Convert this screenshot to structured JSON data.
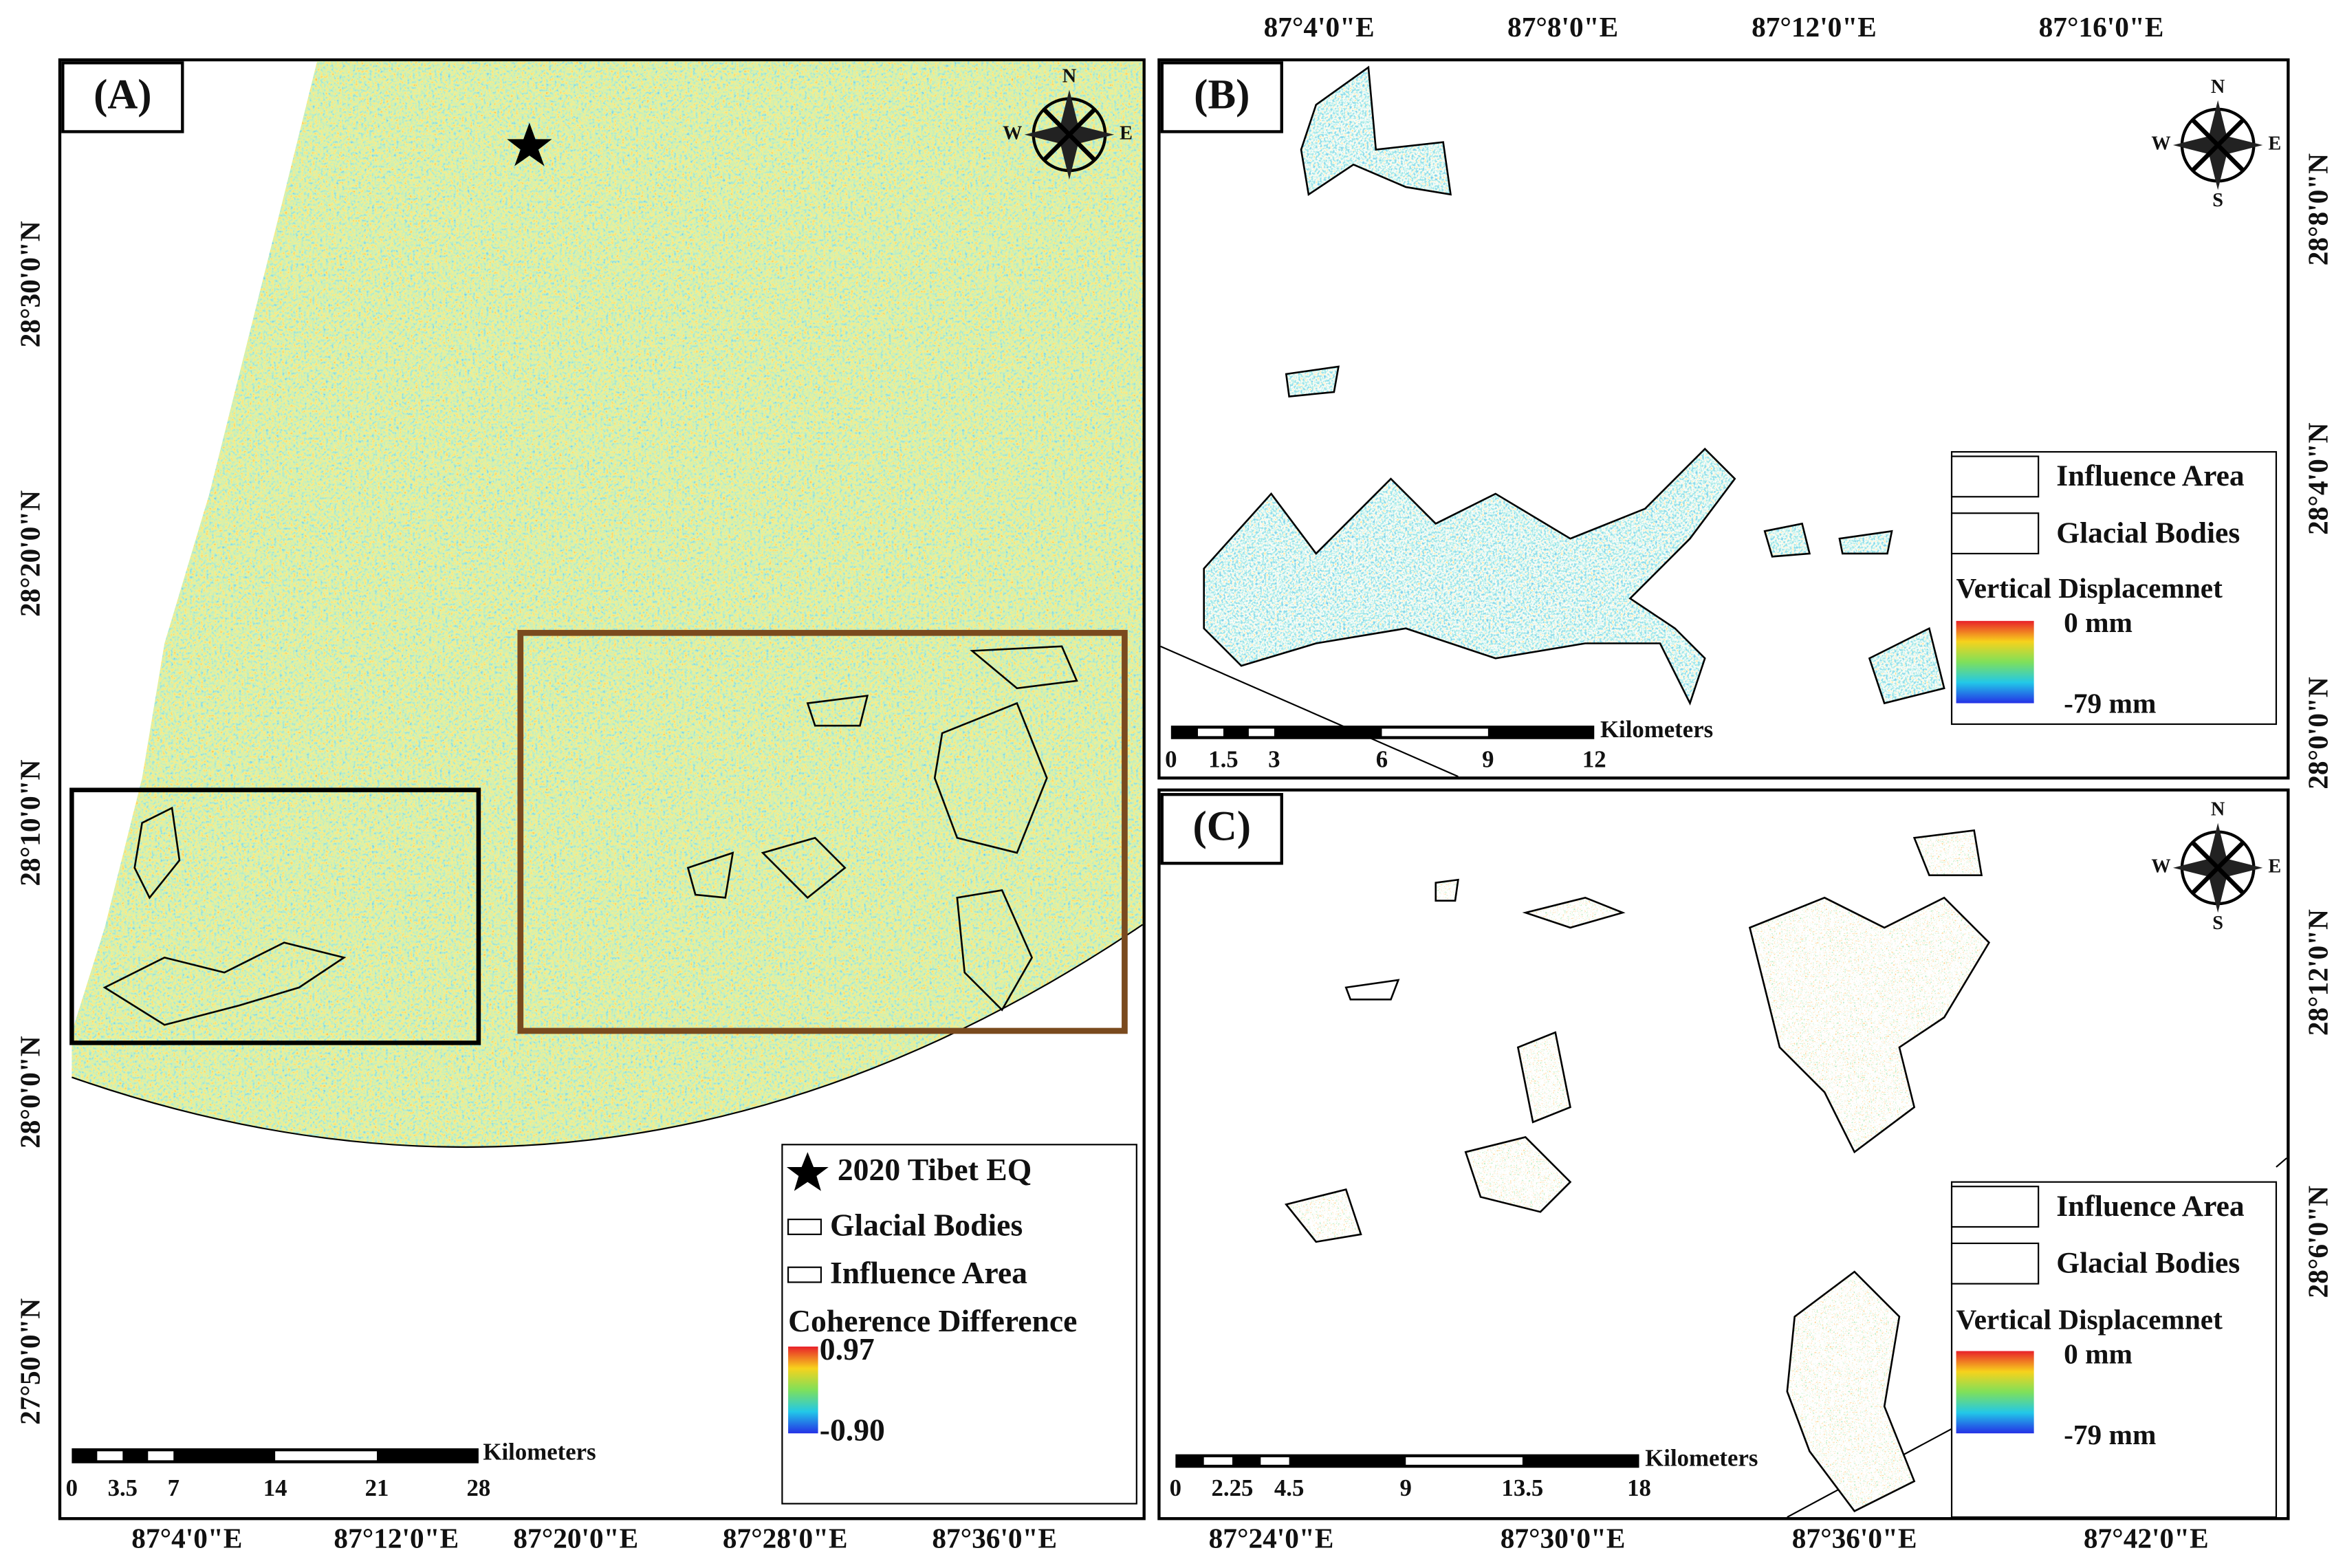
{
  "panel_a": {
    "label": "(A)",
    "compass": {
      "n": "N",
      "w": "W",
      "e": "E"
    },
    "lat_labels": [
      "28°30'0\"N",
      "28°20'0\"N",
      "28°10'0\"N",
      "28°0'0\"N",
      "27°50'0\"N"
    ],
    "lon_labels": [
      "87°4'0\"E",
      "87°12'0\"E",
      "87°20'0\"E",
      "87°28'0\"E",
      "87°36'0\"E"
    ],
    "legend": {
      "earthquake": "2020 Tibet EQ",
      "glacial_bodies": "Glacial Bodies",
      "influence_area": "Influence Area",
      "colorbar_title": "Coherence Difference",
      "max": "0.97",
      "min": "-0.90"
    },
    "scale_bar": {
      "unit": "Kilometers",
      "ticks": [
        "0",
        "3.5",
        "7",
        "14",
        "21",
        "28"
      ]
    }
  },
  "panel_b": {
    "label": "(B)",
    "compass": {
      "n": "N",
      "w": "W",
      "e": "E",
      "s": "S"
    },
    "lon_labels": [
      "87°4'0\"E",
      "87°8'0\"E",
      "87°12'0\"E",
      "87°16'0\"E"
    ],
    "lat_labels": [
      "28°8'0\"N",
      "28°4'0\"N",
      "28°0'0\"N"
    ],
    "legend": {
      "influence_area": "Influence Area",
      "glacial_bodies": "Glacial Bodies",
      "colorbar_title": "Vertical Displacemnet",
      "max": "0 mm",
      "min": "-79 mm"
    },
    "scale_bar": {
      "unit": "Kilometers",
      "ticks": [
        "0",
        "1.5",
        "3",
        "6",
        "9",
        "12"
      ]
    }
  },
  "panel_c": {
    "label": "(C)",
    "compass": {
      "n": "N",
      "w": "W",
      "e": "E",
      "s": "S"
    },
    "lon_labels": [
      "87°24'0\"E",
      "87°30'0\"E",
      "87°36'0\"E",
      "87°42'0\"E"
    ],
    "lat_labels": [
      "28°12'0\"N",
      "28°6'0\"N"
    ],
    "legend": {
      "influence_area": "Influence Area",
      "glacial_bodies": "Glacial Bodies",
      "colorbar_title": "Vertical Displacemnet",
      "max": "0 mm",
      "min": "-79 mm"
    },
    "scale_bar": {
      "unit": "Kilometers",
      "ticks": [
        "0",
        "2.25",
        "4.5",
        "9",
        "13.5",
        "18"
      ]
    }
  }
}
